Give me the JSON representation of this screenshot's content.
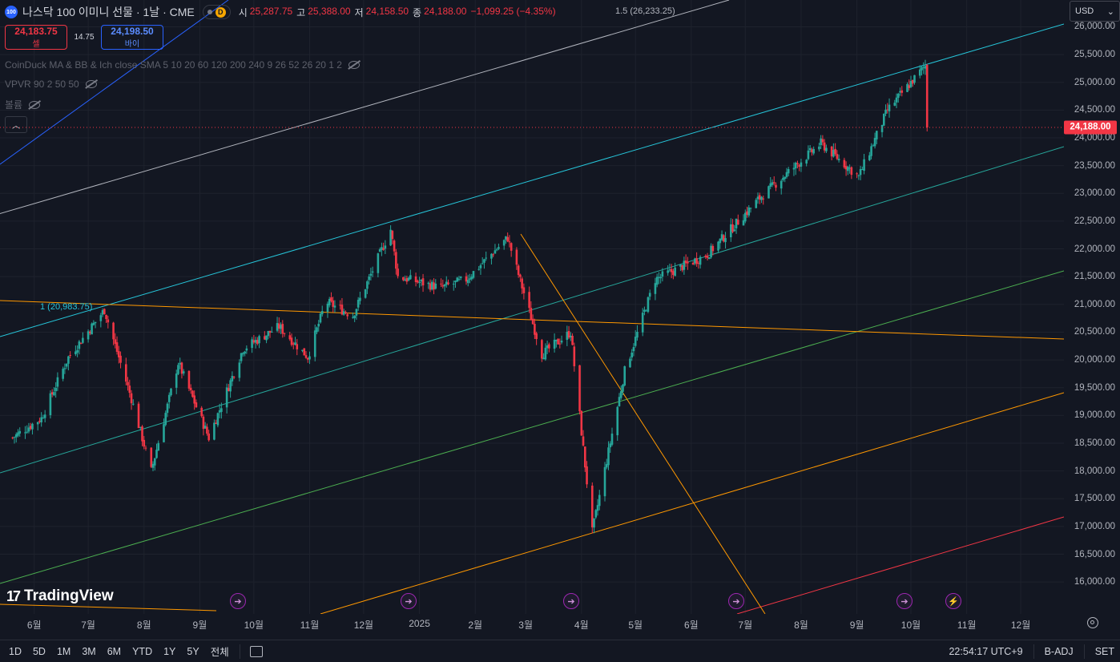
{
  "symbol": {
    "logo_text": "100",
    "title": "나스닥 100 이미니 선물 · 1날 · CME",
    "badge": "D"
  },
  "ohlc": {
    "open_label": "시",
    "open": "25,287.75",
    "high_label": "고",
    "high": "25,388.00",
    "low_label": "저",
    "low": "24,158.50",
    "close_label": "종",
    "close": "24,188.00",
    "change": "−1,099.25 (−4.35%)"
  },
  "fib_top_label": "1.5 (26,233.25)",
  "fib_mid_label": "1 (20,983.75)",
  "trade": {
    "sell_price": "24,183.75",
    "sell_label": "셀",
    "spread": "14.75",
    "buy_price": "24,198.50",
    "buy_label": "바이"
  },
  "indicators": [
    "CoinDuck MA & BB & Ich close SMA 5 10 20 60 120 200 240 9 26 52 26 20 1 2",
    "VPVR 90 2 50 50",
    "볼륨"
  ],
  "currency": "USD",
  "last_price": "24,188.00",
  "colors": {
    "bg": "#131722",
    "up": "#26a69a",
    "down": "#f23645",
    "accent": "#2962ff"
  },
  "y_axis": {
    "min": 15800,
    "max": 26050,
    "ticks": [
      "16,000.00",
      "16,500.00",
      "17,000.00",
      "17,500.00",
      "18,000.00",
      "18,500.00",
      "19,000.00",
      "19,500.00",
      "20,000.00",
      "20,500.00",
      "21,000.00",
      "21,500.00",
      "22,000.00",
      "22,500.00",
      "23,000.00",
      "23,500.00",
      "24,000.00",
      "24,500.00",
      "25,000.00",
      "25,500.00",
      "26,000.00"
    ]
  },
  "x_axis": {
    "ticks": [
      "6월",
      "7월",
      "8월",
      "9월",
      "10월",
      "11월",
      "12월",
      "2025",
      "2월",
      "3월",
      "4월",
      "5월",
      "6월",
      "7월",
      "8월",
      "9월",
      "10월",
      "11월",
      "12월"
    ]
  },
  "chart_data": {
    "type": "candlestick",
    "title": "나스닥 100 이미니 선물 · 1날 · CME",
    "period": "1D",
    "ylim": [
      15800,
      26050
    ],
    "approx_close_path": [
      {
        "d": "2024-05-20",
        "v": 18600
      },
      {
        "d": "2024-06-05",
        "v": 18950
      },
      {
        "d": "2024-06-20",
        "v": 20050
      },
      {
        "d": "2024-07-10",
        "v": 20900
      },
      {
        "d": "2024-07-25",
        "v": 19300
      },
      {
        "d": "2024-08-05",
        "v": 18000
      },
      {
        "d": "2024-08-20",
        "v": 19950
      },
      {
        "d": "2024-09-06",
        "v": 18600
      },
      {
        "d": "2024-09-25",
        "v": 20200
      },
      {
        "d": "2024-10-15",
        "v": 20600
      },
      {
        "d": "2024-10-31",
        "v": 20050
      },
      {
        "d": "2024-11-10",
        "v": 21050
      },
      {
        "d": "2024-11-25",
        "v": 20800
      },
      {
        "d": "2024-12-16",
        "v": 22350
      },
      {
        "d": "2024-12-20",
        "v": 21500
      },
      {
        "d": "2025-01-13",
        "v": 21300
      },
      {
        "d": "2025-01-27",
        "v": 21450
      },
      {
        "d": "2025-02-19",
        "v": 22200
      },
      {
        "d": "2025-03-10",
        "v": 20100
      },
      {
        "d": "2025-03-26",
        "v": 20500
      },
      {
        "d": "2025-04-07",
        "v": 16900
      },
      {
        "d": "2025-04-25",
        "v": 19800
      },
      {
        "d": "2025-05-12",
        "v": 21450
      },
      {
        "d": "2025-06-10",
        "v": 21900
      },
      {
        "d": "2025-07-10",
        "v": 22950
      },
      {
        "d": "2025-08-12",
        "v": 23900
      },
      {
        "d": "2025-09-02",
        "v": 23300
      },
      {
        "d": "2025-09-18",
        "v": 24500
      },
      {
        "d": "2025-10-09",
        "v": 25300
      },
      {
        "d": "2025-10-10",
        "v": 24188
      }
    ]
  },
  "events": [
    "➔",
    "➔",
    "➔",
    "➔",
    "➔",
    "⚡"
  ],
  "bottom_bar": {
    "ranges": [
      "1D",
      "5D",
      "1M",
      "3M",
      "6M",
      "YTD",
      "1Y",
      "5Y",
      "전체"
    ],
    "time": "22:54:17 UTC+9",
    "adj": "B-ADJ",
    "session": "SET"
  },
  "brand": "TradingView"
}
